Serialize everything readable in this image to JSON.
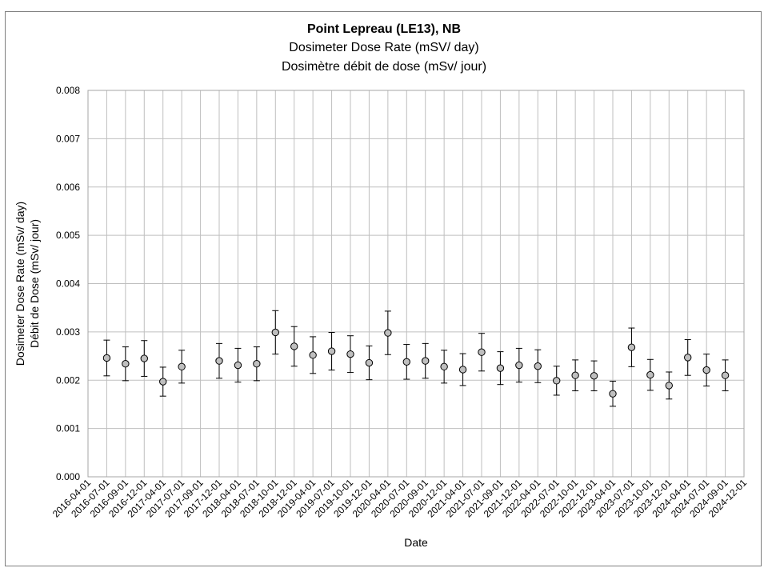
{
  "chart_data": {
    "type": "scatter",
    "title": "Point Lepreau (LE13), NB",
    "subtitle_en": "Dosimeter Dose Rate (mSV/ day)",
    "subtitle_fr": "Dosimètre débit de dose (mSv/ jour)",
    "xlabel": "Date",
    "ylabel_en": "Dosimeter Dose Rate (mSv/ day)",
    "ylabel_fr": "Débit de Dose (mSv/ jour)",
    "ylim": [
      0,
      0.008
    ],
    "y_ticks": [
      "0.000",
      "0.001",
      "0.002",
      "0.003",
      "0.004",
      "0.005",
      "0.006",
      "0.007",
      "0.008"
    ],
    "x_ticks": [
      "2016-04-01",
      "2016-07-01",
      "2016-09-01",
      "2016-12-01",
      "2017-04-01",
      "2017-07-01",
      "2017-09-01",
      "2017-12-01",
      "2018-04-01",
      "2018-07-01",
      "2018-10-01",
      "2018-12-01",
      "2019-04-01",
      "2019-07-01",
      "2019-10-01",
      "2019-12-01",
      "2020-04-01",
      "2020-07-01",
      "2020-09-01",
      "2020-12-01",
      "2021-04-01",
      "2021-07-01",
      "2021-09-01",
      "2021-12-01",
      "2022-04-01",
      "2022-07-01",
      "2022-10-01",
      "2022-12-01",
      "2023-04-01",
      "2023-07-01",
      "2023-10-01",
      "2023-12-01",
      "2024-04-01",
      "2024-07-01",
      "2024-09-01",
      "2024-12-01"
    ],
    "grid": true,
    "marker_color": "#bfbfbf",
    "series": [
      {
        "points": [
          {
            "x": "2016-07-01",
            "y": 0.00246,
            "err": 0.00037
          },
          {
            "x": "2016-09-01",
            "y": 0.00234,
            "err": 0.00035
          },
          {
            "x": "2016-12-01",
            "y": 0.00245,
            "err": 0.00037
          },
          {
            "x": "2017-04-01",
            "y": 0.00197,
            "err": 0.0003
          },
          {
            "x": "2017-07-01",
            "y": 0.00228,
            "err": 0.00034
          },
          {
            "x": "2017-12-01",
            "y": 0.0024,
            "err": 0.00036
          },
          {
            "x": "2018-04-01",
            "y": 0.00231,
            "err": 0.00035
          },
          {
            "x": "2018-07-01",
            "y": 0.00234,
            "err": 0.00035
          },
          {
            "x": "2018-10-01",
            "y": 0.00299,
            "err": 0.00045
          },
          {
            "x": "2018-12-01",
            "y": 0.0027,
            "err": 0.00041
          },
          {
            "x": "2019-04-01",
            "y": 0.00252,
            "err": 0.00038
          },
          {
            "x": "2019-07-01",
            "y": 0.0026,
            "err": 0.00039
          },
          {
            "x": "2019-10-01",
            "y": 0.00254,
            "err": 0.00038
          },
          {
            "x": "2019-12-01",
            "y": 0.00236,
            "err": 0.00035
          },
          {
            "x": "2020-04-01",
            "y": 0.00298,
            "err": 0.00045
          },
          {
            "x": "2020-07-01",
            "y": 0.00238,
            "err": 0.00036
          },
          {
            "x": "2020-09-01",
            "y": 0.0024,
            "err": 0.00036
          },
          {
            "x": "2020-12-01",
            "y": 0.00228,
            "err": 0.00034
          },
          {
            "x": "2021-04-01",
            "y": 0.00222,
            "err": 0.00033
          },
          {
            "x": "2021-07-01",
            "y": 0.00258,
            "err": 0.00039
          },
          {
            "x": "2021-09-01",
            "y": 0.00225,
            "err": 0.00034
          },
          {
            "x": "2021-12-01",
            "y": 0.00231,
            "err": 0.00035
          },
          {
            "x": "2022-04-01",
            "y": 0.00229,
            "err": 0.00034
          },
          {
            "x": "2022-07-01",
            "y": 0.00199,
            "err": 0.0003
          },
          {
            "x": "2022-10-01",
            "y": 0.0021,
            "err": 0.00032
          },
          {
            "x": "2022-12-01",
            "y": 0.00209,
            "err": 0.00031
          },
          {
            "x": "2023-04-01",
            "y": 0.00172,
            "err": 0.00026
          },
          {
            "x": "2023-07-01",
            "y": 0.00268,
            "err": 0.0004
          },
          {
            "x": "2023-10-01",
            "y": 0.00211,
            "err": 0.00032
          },
          {
            "x": "2023-12-01",
            "y": 0.00189,
            "err": 0.00028
          },
          {
            "x": "2024-04-01",
            "y": 0.00247,
            "err": 0.00037
          },
          {
            "x": "2024-07-01",
            "y": 0.00221,
            "err": 0.00033
          },
          {
            "x": "2024-09-01",
            "y": 0.0021,
            "err": 0.00032
          }
        ]
      }
    ]
  }
}
